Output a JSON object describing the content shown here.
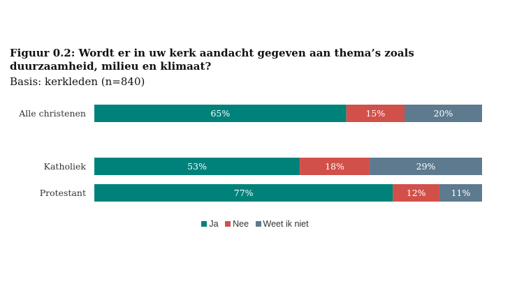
{
  "chart_data": {
    "type": "bar",
    "orientation": "horizontal",
    "stacked": true,
    "title": "Figuur 0.2: Wordt er in uw kerk aandacht gegeven aan thema’s zoals duurzaamheid, milieu en klimaat?",
    "subtitle": "Basis: kerkleden (n=840)",
    "categories": [
      "Alle christenen",
      "Katholiek",
      "Protestant"
    ],
    "series": [
      {
        "name": "Ja",
        "color": "#00827a",
        "values": [
          65,
          53,
          77
        ],
        "labels": [
          "65%",
          "53%",
          "77%"
        ]
      },
      {
        "name": "Nee",
        "color": "#d2504a",
        "values": [
          15,
          18,
          12
        ],
        "labels": [
          "15%",
          "18%",
          "12%"
        ]
      },
      {
        "name": "Weet ik niet",
        "color": "#5e7a8e",
        "values": [
          20,
          29,
          11
        ],
        "labels": [
          "20%",
          "29%",
          "11%"
        ]
      }
    ],
    "xlim": [
      0,
      100
    ],
    "legend": "bottom",
    "grid": false
  }
}
